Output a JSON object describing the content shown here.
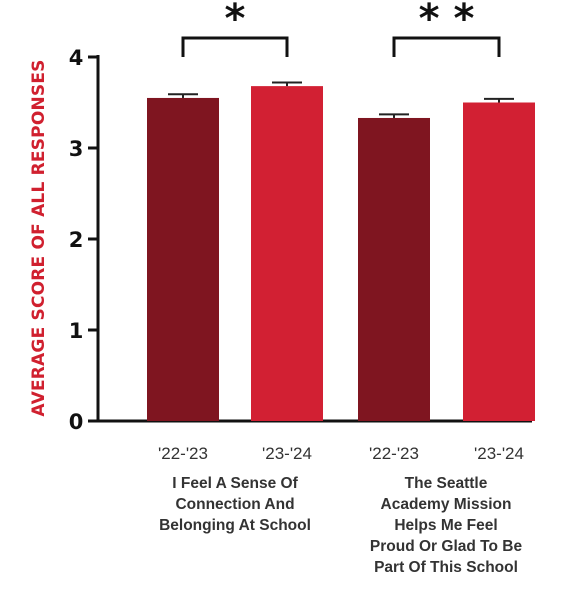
{
  "chart_data": {
    "type": "bar",
    "ylabel": "AVERAGE SCORE OF ALL RESPONSES",
    "ylim": [
      0,
      4
    ],
    "yticks": [
      "0",
      "1",
      "2",
      "3",
      "4"
    ],
    "groups": [
      {
        "label_lines": [
          "I Feel A Sense Of",
          "Connection And",
          "Belonging At School"
        ],
        "significance": "*",
        "bars": [
          {
            "category": "'22-'23",
            "value": 3.55,
            "error": 0.04,
            "color": "#7f1520"
          },
          {
            "category": "'23-'24",
            "value": 3.68,
            "error": 0.04,
            "color": "#d22033"
          }
        ]
      },
      {
        "label_lines": [
          "The Seattle",
          "Academy Mission",
          "Helps Me Feel",
          "Proud Or Glad To Be",
          "Part Of This School"
        ],
        "significance": "* *",
        "bars": [
          {
            "category": "'22-'23",
            "value": 3.33,
            "error": 0.04,
            "color": "#7f1520"
          },
          {
            "category": "'23-'24",
            "value": 3.5,
            "error": 0.04,
            "color": "#d22033"
          }
        ]
      }
    ]
  }
}
